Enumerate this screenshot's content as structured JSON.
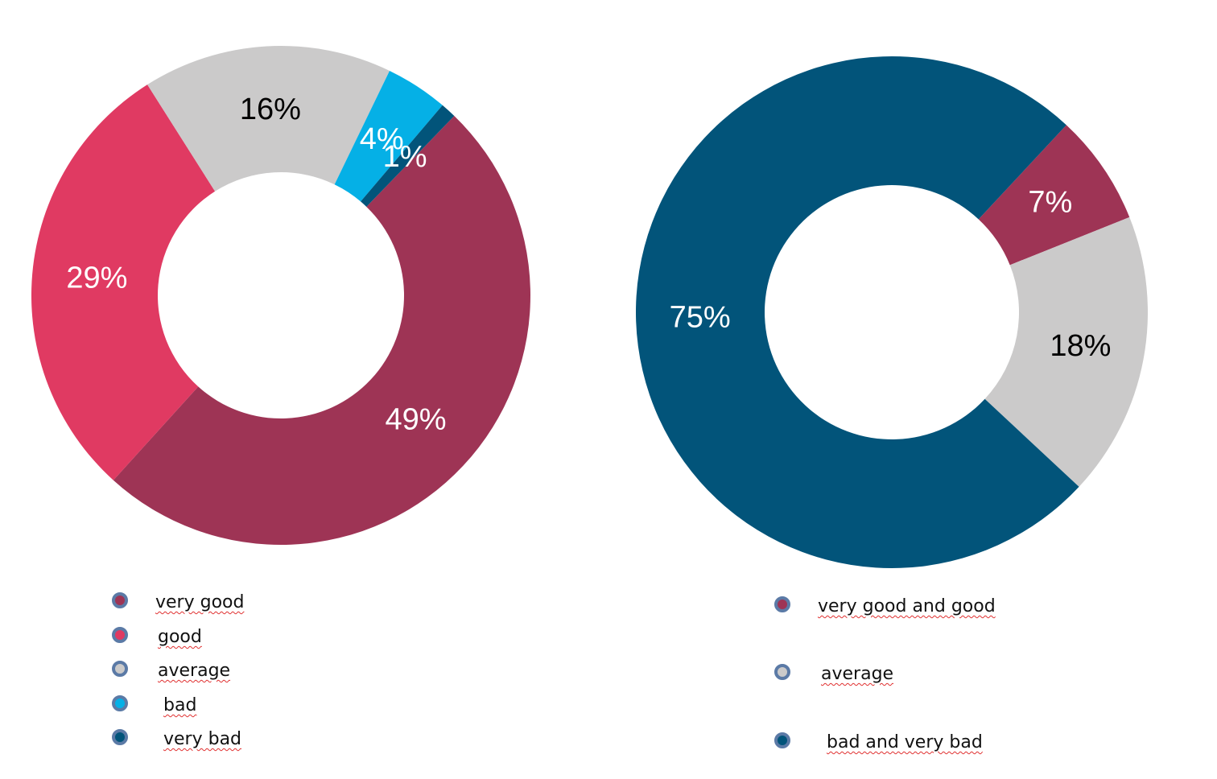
{
  "chart_data": [
    {
      "type": "donut",
      "categories": [
        "very good",
        "good",
        "average",
        "bad",
        "very bad"
      ],
      "values": [
        49,
        29,
        16,
        4,
        1
      ],
      "value_labels": [
        "49%",
        "29%",
        "16%",
        "4%",
        "1%"
      ],
      "colors": [
        "#9e3455",
        "#e03a62",
        "#cbcaca",
        "#05b0e6",
        "#02547a"
      ],
      "label_colors": [
        "#ffffff",
        "#ffffff",
        "#000000",
        "#ffffff",
        "#ffffff"
      ]
    },
    {
      "type": "donut",
      "categories": [
        "very good and good",
        "average",
        "bad and very bad"
      ],
      "values": [
        7,
        18,
        75
      ],
      "value_labels": [
        "7%",
        "18%",
        "75%"
      ],
      "colors": [
        "#9e3455",
        "#cbcaca",
        "#02547a"
      ],
      "label_colors": [
        "#ffffff",
        "#000000",
        "#ffffff"
      ]
    }
  ]
}
